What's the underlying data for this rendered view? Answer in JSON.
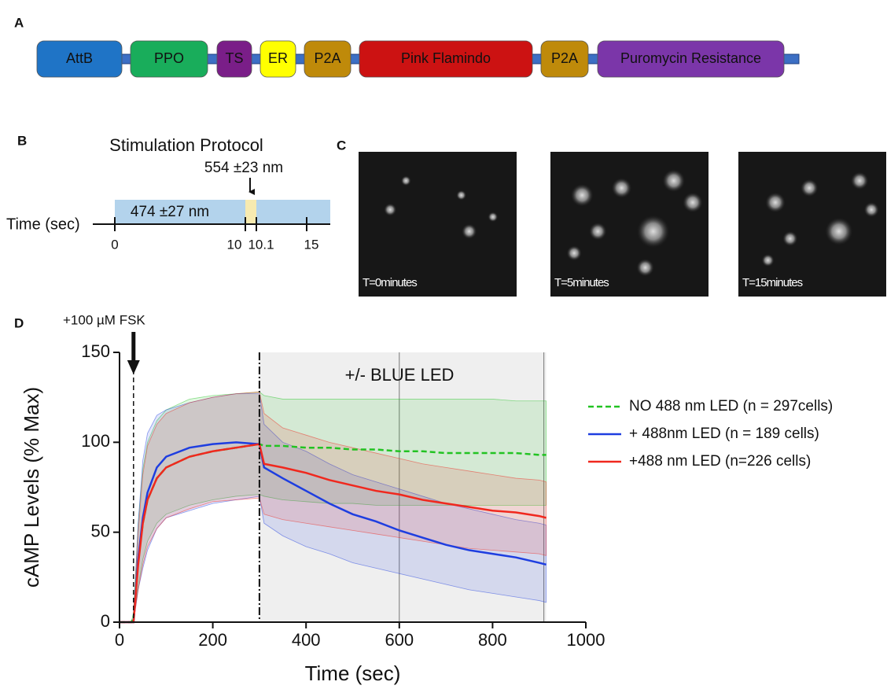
{
  "panel_a": {
    "label": "A",
    "segments": [
      {
        "label": "AttB",
        "color": "#1f74c6"
      },
      {
        "label": "PPO",
        "color": "#19ad5b"
      },
      {
        "label": "TS",
        "color": "#7a1e88"
      },
      {
        "label": "ER",
        "color": "#ffff00"
      },
      {
        "label": "P2A",
        "color": "#bf8a0a"
      },
      {
        "label": "Pink Flamindo",
        "color": "#cc1212"
      },
      {
        "label": "P2A",
        "color": "#bf8a0a"
      },
      {
        "label": "Puromycin Resistance",
        "color": "#7b36a9"
      }
    ]
  },
  "panel_b": {
    "label": "B",
    "title": "Stimulation Protocol",
    "axis_label": "Time (sec)",
    "wavelength_main": "474 ±27 nm",
    "wavelength_pulse": "554 ±23 nm",
    "ticks": [
      "0",
      "10",
      "10.1",
      "15"
    ]
  },
  "panel_c": {
    "label": "C",
    "images": [
      {
        "caption": "T=0minutes"
      },
      {
        "caption": "T=5minutes"
      },
      {
        "caption": "T=15minutes"
      }
    ]
  },
  "panel_d_label": "D",
  "chart_data": {
    "type": "line",
    "xlabel": "Time (sec)",
    "ylabel": "cAMP Levels (% Max)",
    "fsk_annotation": "+100 µM FSK",
    "fsk_time": 30,
    "led_annotation": "+/- BLUE LED",
    "led_period": [
      300,
      915
    ],
    "reference_lines": [
      600,
      910
    ],
    "x": [
      0,
      25,
      30,
      40,
      50,
      60,
      80,
      100,
      150,
      200,
      250,
      300,
      310,
      350,
      400,
      450,
      500,
      550,
      600,
      650,
      700,
      750,
      800,
      850,
      900,
      915
    ],
    "series": [
      {
        "name": "NO 488 nm LED (n = 297cells)",
        "color": "#22c322",
        "dashed": true,
        "values": [
          0,
          0,
          2,
          35,
          55,
          68,
          80,
          86,
          92,
          95,
          97,
          99,
          98,
          98,
          97,
          97,
          96,
          96,
          95,
          95,
          94,
          94,
          94,
          94,
          93,
          93
        ],
        "upper": [
          0,
          0,
          5,
          55,
          85,
          100,
          112,
          118,
          124,
          126,
          127,
          128,
          126,
          124,
          124,
          124,
          124,
          124,
          124,
          124,
          124,
          124,
          124,
          123,
          123,
          123
        ],
        "lower": [
          0,
          0,
          0,
          20,
          35,
          45,
          55,
          60,
          65,
          68,
          70,
          71,
          70,
          68,
          67,
          66,
          66,
          65,
          65,
          65,
          65,
          65,
          65,
          65,
          65,
          65
        ]
      },
      {
        "name": "+ 488nm LED (n = 189 cells)",
        "color": "#1e3ee0",
        "dashed": false,
        "values": [
          0,
          0,
          0,
          35,
          58,
          72,
          86,
          92,
          97,
          99,
          100,
          99,
          86,
          80,
          73,
          66,
          60,
          56,
          51,
          47,
          43,
          40,
          38,
          36,
          33,
          32
        ],
        "upper": [
          0,
          0,
          2,
          55,
          90,
          105,
          115,
          118,
          122,
          125,
          127,
          127,
          110,
          100,
          95,
          88,
          82,
          78,
          74,
          70,
          66,
          63,
          60,
          57,
          55,
          54
        ],
        "lower": [
          0,
          0,
          0,
          18,
          30,
          40,
          52,
          58,
          62,
          66,
          68,
          70,
          55,
          48,
          42,
          38,
          33,
          30,
          27,
          24,
          21,
          18,
          16,
          14,
          12,
          11
        ]
      },
      {
        "name": "+488 nm LED (n=226 cells)",
        "color": "#f0281e",
        "dashed": false,
        "values": [
          0,
          0,
          0,
          32,
          55,
          68,
          80,
          86,
          92,
          95,
          97,
          99,
          88,
          86,
          83,
          79,
          76,
          73,
          71,
          68,
          66,
          64,
          62,
          61,
          59,
          58
        ],
        "upper": [
          0,
          0,
          2,
          50,
          82,
          98,
          110,
          116,
          122,
          125,
          127,
          128,
          116,
          108,
          104,
          100,
          97,
          94,
          91,
          88,
          86,
          84,
          82,
          80,
          79,
          78
        ],
        "lower": [
          0,
          0,
          0,
          18,
          32,
          42,
          52,
          58,
          63,
          67,
          68,
          69,
          60,
          57,
          55,
          53,
          51,
          49,
          47,
          45,
          43,
          41,
          40,
          39,
          38,
          37
        ]
      }
    ],
    "xlim": [
      0,
      1000
    ],
    "ylim": [
      0,
      150
    ],
    "xticks": [
      0,
      200,
      400,
      600,
      800,
      1000
    ],
    "yticks": [
      0,
      50,
      100,
      150
    ]
  }
}
